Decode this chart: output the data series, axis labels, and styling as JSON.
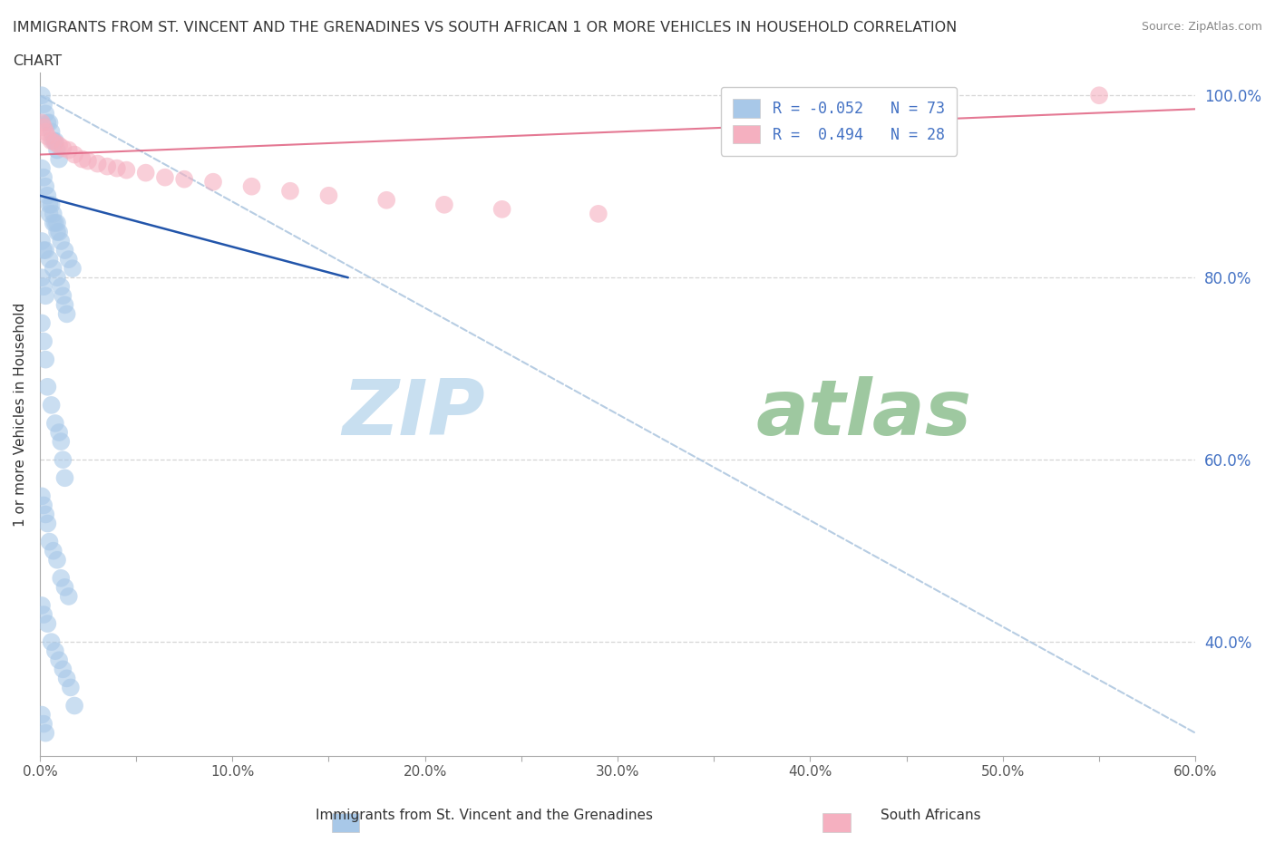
{
  "title_line1": "IMMIGRANTS FROM ST. VINCENT AND THE GRENADINES VS SOUTH AFRICAN 1 OR MORE VEHICLES IN HOUSEHOLD CORRELATION",
  "title_line2": "CHART",
  "source": "Source: ZipAtlas.com",
  "ylabel": "1 or more Vehicles in Household",
  "r_blue": -0.052,
  "n_blue": 73,
  "r_pink": 0.494,
  "n_pink": 28,
  "blue_color": "#a8c8e8",
  "pink_color": "#f5b0c0",
  "blue_line_color": "#2255aa",
  "pink_line_color": "#e06080",
  "diagonal_color": "#b0c8e0",
  "background_color": "#ffffff",
  "watermark_zip": "ZIP",
  "watermark_atlas": "atlas",
  "watermark_color_zip": "#c8dff0",
  "watermark_color_atlas": "#9ec8a0",
  "xlim": [
    0.0,
    0.6
  ],
  "ylim": [
    0.275,
    1.025
  ],
  "right_yticks": [
    0.4,
    0.6,
    0.8,
    1.0
  ],
  "right_yticklabels": [
    "40.0%",
    "60.0%",
    "80.0%",
    "100.0%"
  ],
  "xtick_labels": [
    "0.0%",
    "",
    "10.0%",
    "",
    "20.0%",
    "",
    "30.0%",
    "",
    "40.0%",
    "",
    "50.0%",
    "",
    "60.0%"
  ],
  "xtick_values": [
    0.0,
    0.05,
    0.1,
    0.15,
    0.2,
    0.25,
    0.3,
    0.35,
    0.4,
    0.45,
    0.5,
    0.55,
    0.6
  ],
  "legend_label_blue": "Immigrants from St. Vincent and the Grenadines",
  "legend_label_pink": "South Africans",
  "figsize": [
    14.06,
    9.3
  ],
  "dpi": 100,
  "blue_scatter_x": [
    0.001,
    0.002,
    0.003,
    0.004,
    0.005,
    0.006,
    0.007,
    0.008,
    0.009,
    0.01,
    0.001,
    0.002,
    0.003,
    0.004,
    0.005,
    0.006,
    0.007,
    0.008,
    0.009,
    0.01,
    0.001,
    0.002,
    0.003,
    0.005,
    0.007,
    0.009,
    0.011,
    0.012,
    0.013,
    0.014,
    0.001,
    0.002,
    0.003,
    0.004,
    0.006,
    0.008,
    0.01,
    0.011,
    0.012,
    0.013,
    0.001,
    0.002,
    0.003,
    0.004,
    0.005,
    0.007,
    0.009,
    0.011,
    0.013,
    0.015,
    0.001,
    0.002,
    0.004,
    0.006,
    0.008,
    0.01,
    0.012,
    0.014,
    0.016,
    0.018,
    0.001,
    0.002,
    0.003,
    0.005,
    0.007,
    0.009,
    0.011,
    0.013,
    0.015,
    0.017,
    0.001,
    0.002,
    0.003
  ],
  "blue_scatter_y": [
    1.0,
    0.99,
    0.98,
    0.97,
    0.97,
    0.96,
    0.95,
    0.95,
    0.94,
    0.93,
    0.92,
    0.91,
    0.9,
    0.89,
    0.88,
    0.88,
    0.87,
    0.86,
    0.86,
    0.85,
    0.84,
    0.83,
    0.83,
    0.82,
    0.81,
    0.8,
    0.79,
    0.78,
    0.77,
    0.76,
    0.75,
    0.73,
    0.71,
    0.68,
    0.66,
    0.64,
    0.63,
    0.62,
    0.6,
    0.58,
    0.56,
    0.55,
    0.54,
    0.53,
    0.51,
    0.5,
    0.49,
    0.47,
    0.46,
    0.45,
    0.44,
    0.43,
    0.42,
    0.4,
    0.39,
    0.38,
    0.37,
    0.36,
    0.35,
    0.33,
    0.32,
    0.31,
    0.3,
    0.87,
    0.86,
    0.85,
    0.84,
    0.83,
    0.82,
    0.81,
    0.8,
    0.79,
    0.78
  ],
  "pink_scatter_x": [
    0.001,
    0.002,
    0.003,
    0.004,
    0.006,
    0.008,
    0.01,
    0.012,
    0.015,
    0.018,
    0.022,
    0.025,
    0.03,
    0.035,
    0.04,
    0.045,
    0.055,
    0.065,
    0.075,
    0.09,
    0.11,
    0.13,
    0.15,
    0.18,
    0.21,
    0.24,
    0.29,
    0.55
  ],
  "pink_scatter_y": [
    0.97,
    0.965,
    0.96,
    0.955,
    0.95,
    0.948,
    0.945,
    0.942,
    0.94,
    0.935,
    0.93,
    0.928,
    0.925,
    0.922,
    0.92,
    0.918,
    0.915,
    0.91,
    0.908,
    0.905,
    0.9,
    0.895,
    0.89,
    0.885,
    0.88,
    0.875,
    0.87,
    1.0
  ],
  "blue_trend_x": [
    0.0,
    0.16
  ],
  "blue_trend_y": [
    0.89,
    0.8
  ],
  "pink_trend_x": [
    0.0,
    0.6
  ],
  "pink_trend_y": [
    0.935,
    0.985
  ]
}
